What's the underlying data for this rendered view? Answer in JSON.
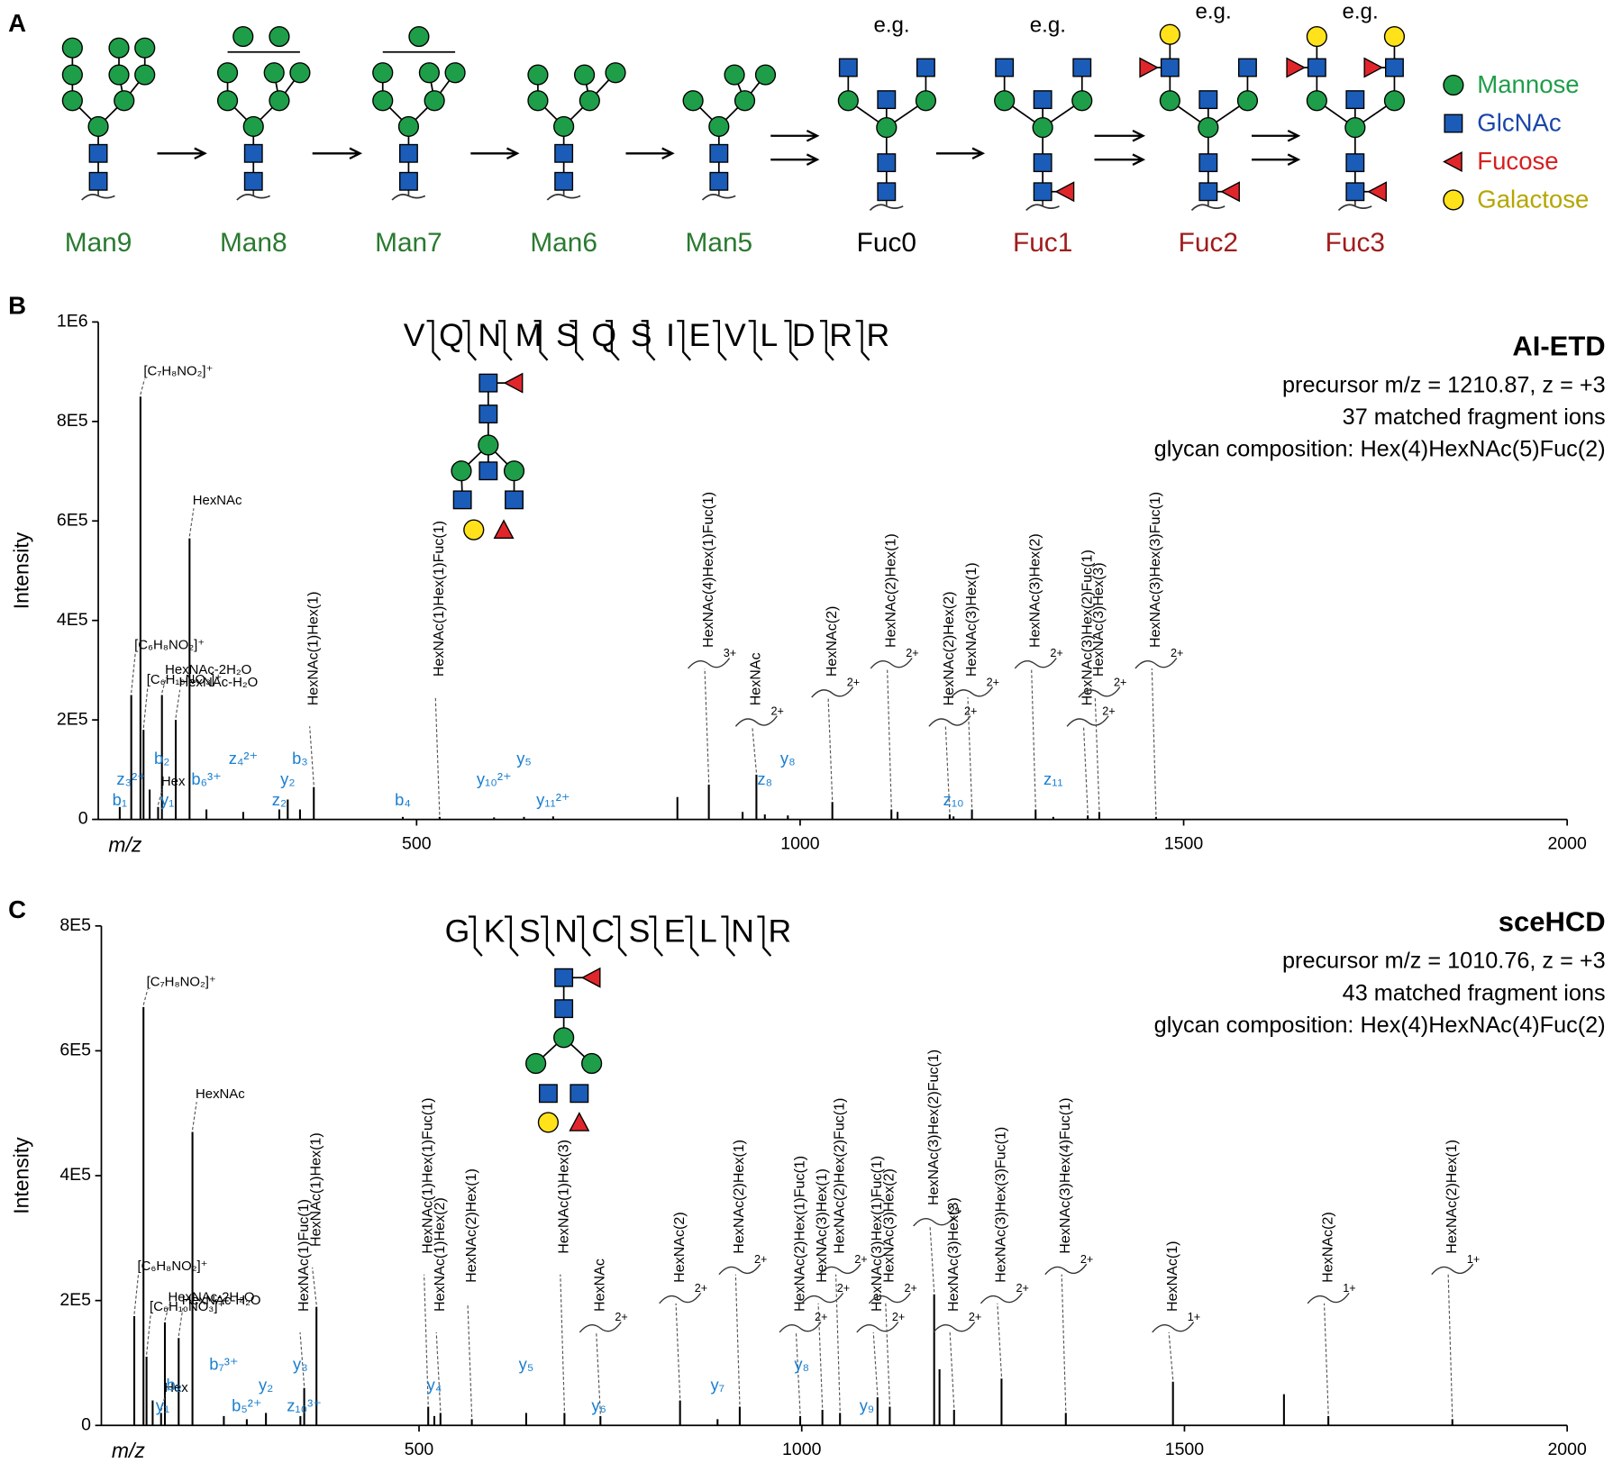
{
  "diagram": {
    "label": "A",
    "steps": [
      {
        "name": "Man9",
        "color": "#2a7a30"
      },
      {
        "name": "Man8",
        "color": "#2a7a30"
      },
      {
        "name": "Man7",
        "color": "#2a7a30"
      },
      {
        "name": "Man6",
        "color": "#2a7a30"
      },
      {
        "name": "Man5",
        "color": "#2a7a30"
      },
      {
        "name": "Fuc0",
        "color": "#000000",
        "note": "e.g."
      },
      {
        "name": "Fuc1",
        "color": "#a01c1c",
        "note": "e.g."
      },
      {
        "name": "Fuc2",
        "color": "#a01c1c",
        "note": "e.g."
      },
      {
        "name": "Fuc3",
        "color": "#a01c1c",
        "note": "e.g."
      }
    ],
    "legend": [
      "Mannose",
      "GlcNAc",
      "Fucose",
      "Galactose"
    ]
  },
  "chart_data": [
    {
      "type": "spectrum",
      "panel": "B",
      "title": "AI-ETD",
      "precursor": "precursor m/z = 1210.87, z = +3",
      "matched": "37 matched fragment ions",
      "composition": "glycan composition: Hex(4)HexNAc(5)Fuc(2)",
      "sequence": "VQNMSQSIEVLDRR",
      "xlabel": "m/z",
      "ylabel": "Intensity",
      "color": "#000000",
      "xlim": [
        85,
        2000
      ],
      "xticks": [
        500,
        1000,
        1500,
        2000
      ],
      "ylim": [
        0,
        1000000
      ],
      "yticks": [
        0,
        {
          "value": 200000,
          "label": "2E5"
        },
        {
          "value": 400000,
          "label": "4E5"
        },
        {
          "value": 600000,
          "label": "6E5"
        },
        {
          "value": 800000,
          "label": "8E5"
        },
        {
          "value": 1000000,
          "label": "1E6"
        }
      ],
      "x": [
        113,
        128,
        140,
        144,
        152,
        163,
        168,
        186,
        204,
        226,
        274,
        321,
        332,
        348,
        366,
        482,
        530,
        601,
        640,
        678,
        840,
        881,
        925,
        943,
        954,
        984,
        1042,
        1119,
        1127,
        1195,
        1200,
        1224,
        1307,
        1330,
        1375,
        1390,
        1464
      ],
      "values": [
        25000,
        250000,
        850000,
        180000,
        60000,
        25000,
        250000,
        200000,
        565000,
        20000,
        15000,
        20000,
        40000,
        20000,
        65000,
        5000,
        5000,
        4000,
        5000,
        6000,
        45000,
        70000,
        15000,
        90000,
        10000,
        8000,
        35000,
        20000,
        15000,
        10000,
        6000,
        20000,
        20000,
        5000,
        8000,
        15000,
        5000
      ],
      "peak_labels": [
        {
          "text": "[C₇H₈NO₂]⁺",
          "x": 140
        },
        {
          "text": "HexNAc",
          "x": 204
        },
        {
          "text": "[C₆H₈NO₂]⁺",
          "x": 128
        },
        {
          "text": "HexNAc-2H₂O",
          "x": 168
        },
        {
          "text": "HexNAc-H₂O",
          "x": 186
        },
        {
          "text": "[C₆H₁₀NO₃]⁺",
          "x": 144
        },
        {
          "text": "Hex",
          "x": 163
        }
      ],
      "glycan_labels": [
        {
          "text": "HexNAc(1)Hex(1)",
          "x": 366
        },
        {
          "text": "HexNAc(1)Hex(1)Fuc(1)",
          "x": 530
        },
        {
          "text": "HexNAc(4)Hex(1)Fuc(1)",
          "x": 881,
          "charge": "3+"
        },
        {
          "text": "HexNAc",
          "x": 943,
          "charge": "2+"
        },
        {
          "text": "HexNAc(2)",
          "x": 1042,
          "charge": "2+"
        },
        {
          "text": "HexNAc(2)Hex(1)",
          "x": 1119,
          "charge": "2+"
        },
        {
          "text": "HexNAc(2)Hex(2)",
          "x": 1195,
          "charge": "2+"
        },
        {
          "text": "HexNAc(3)Hex(1)",
          "x": 1224,
          "charge": "2+"
        },
        {
          "text": "HexNAc(3)Hex(2)",
          "x": 1307,
          "charge": "2+"
        },
        {
          "text": "HexNAc(3)Hex(2)Fuc(1)",
          "x": 1375,
          "charge": "2+"
        },
        {
          "text": "HexNAc(3)Hex(3)",
          "x": 1390,
          "charge": "2+"
        },
        {
          "text": "HexNAc(3)Hex(3)Fuc(1)",
          "x": 1464,
          "charge": "2+"
        }
      ],
      "ion_labels": [
        {
          "text": "b₁",
          "x": 113
        },
        {
          "text": "z₃²⁺",
          "x": 128
        },
        {
          "text": "b₂",
          "x": 168
        },
        {
          "text": "y₁",
          "x": 175
        },
        {
          "text": "b₆³⁺",
          "x": 226
        },
        {
          "text": "z₄²⁺",
          "x": 274
        },
        {
          "text": "z₂",
          "x": 321
        },
        {
          "text": "y₂",
          "x": 332
        },
        {
          "text": "b₃",
          "x": 348
        },
        {
          "text": "b₄",
          "x": 482
        },
        {
          "text": "y₁₀²⁺",
          "x": 601
        },
        {
          "text": "y₅",
          "x": 640
        },
        {
          "text": "y₁₁²⁺",
          "x": 678
        },
        {
          "text": "z₈",
          "x": 954
        },
        {
          "text": "y₈",
          "x": 984
        },
        {
          "text": "z₁₀",
          "x": 1200
        },
        {
          "text": "z₁₁",
          "x": 1330
        }
      ]
    },
    {
      "type": "spectrum",
      "panel": "C",
      "title": "sceHCD",
      "precursor": "precursor m/z = 1010.76, z = +3",
      "matched": "43 matched fragment ions",
      "composition": "glycan composition: Hex(4)HexNAc(4)Fuc(2)",
      "sequence": "GKSNCSELNR",
      "xlabel": "m/z",
      "ylabel": "Intensity",
      "color": "#000000",
      "xlim": [
        85,
        2000
      ],
      "xticks": [
        500,
        1000,
        1500,
        2000
      ],
      "ylim": [
        0,
        800000
      ],
      "yticks": [
        0,
        {
          "value": 200000,
          "label": "2E5"
        },
        {
          "value": 400000,
          "label": "4E5"
        },
        {
          "value": 600000,
          "label": "6E5"
        },
        {
          "value": 800000,
          "label": "8E5"
        }
      ],
      "x": [
        128,
        140,
        144,
        152,
        163,
        168,
        186,
        204,
        245,
        275,
        300,
        345,
        350,
        366,
        512,
        520,
        528,
        569,
        640,
        690,
        737,
        841,
        890,
        919,
        998,
        1027,
        1050,
        1099,
        1115,
        1173,
        1180,
        1199,
        1261,
        1345,
        1485,
        1630,
        1688,
        1850
      ],
      "values": [
        175000,
        670000,
        110000,
        40000,
        20000,
        165000,
        140000,
        470000,
        15000,
        10000,
        20000,
        15000,
        60000,
        190000,
        30000,
        15000,
        20000,
        10000,
        20000,
        20000,
        15000,
        40000,
        10000,
        30000,
        15000,
        25000,
        20000,
        45000,
        30000,
        210000,
        90000,
        25000,
        75000,
        20000,
        70000,
        50000,
        15000,
        10000
      ],
      "peak_labels": [
        {
          "text": "[C₇H₈NO₂]⁺",
          "x": 140
        },
        {
          "text": "HexNAc",
          "x": 204
        },
        {
          "text": "[C₆H₈NO₂]⁺",
          "x": 128
        },
        {
          "text": "HexNAc-2H₂O",
          "x": 168
        },
        {
          "text": "HexNAc-H₂O",
          "x": 186
        },
        {
          "text": "[C₆H₁₀NO₃]⁺",
          "x": 144
        },
        {
          "text": "Hex",
          "x": 163
        }
      ],
      "glycan_labels": [
        {
          "text": "HexNAc(1)Fuc(1)",
          "x": 350
        },
        {
          "text": "HexNAc(1)Hex(1)",
          "x": 366
        },
        {
          "text": "HexNAc(1)Hex(1)Fuc(1)",
          "x": 512
        },
        {
          "text": "HexNAc(1)Hex(2)",
          "x": 528
        },
        {
          "text": "HexNAc(2)Hex(1)",
          "x": 569
        },
        {
          "text": "HexNAc(1)Hex(3)",
          "x": 690
        },
        {
          "text": "HexNAc",
          "x": 737,
          "charge": "2+"
        },
        {
          "text": "HexNAc(2)",
          "x": 841,
          "charge": "2+"
        },
        {
          "text": "HexNAc(2)Hex(1)",
          "x": 919,
          "charge": "2+"
        },
        {
          "text": "HexNAc(2)Hex(1)Fuc(1)",
          "x": 998,
          "charge": "2+"
        },
        {
          "text": "HexNAc(3)Hex(1)",
          "x": 1027,
          "charge": "2+"
        },
        {
          "text": "HexNAc(2)Hex(2)Fuc(1)",
          "x": 1050,
          "charge": "2+"
        },
        {
          "text": "HexNAc(3)Hex(1)Fuc(1)",
          "x": 1099,
          "charge": "2+"
        },
        {
          "text": "HexNAc(3)Hex(2)",
          "x": 1115,
          "charge": "2+"
        },
        {
          "text": "HexNAc(3)Hex(2)Fuc(1)",
          "x": 1173,
          "charge": "2+"
        },
        {
          "text": "HexNAc(3)Hex(3)",
          "x": 1199,
          "charge": "2+"
        },
        {
          "text": "HexNAc(3)Hex(3)Fuc(1)",
          "x": 1261,
          "charge": "2+"
        },
        {
          "text": "HexNAc(3)Hex(4)Fuc(1)",
          "x": 1345,
          "charge": "2+"
        },
        {
          "text": "HexNAc(1)",
          "x": 1485,
          "charge": "1+"
        },
        {
          "text": "HexNAc(2)",
          "x": 1688,
          "charge": "1+"
        },
        {
          "text": "HexNAc(2)Hex(1)",
          "x": 1850,
          "charge": "1+"
        }
      ],
      "ion_labels": [
        {
          "text": "y₁",
          "x": 165
        },
        {
          "text": "b₂",
          "x": 180
        },
        {
          "text": "b₇³⁺",
          "x": 245
        },
        {
          "text": "b₅²⁺",
          "x": 275
        },
        {
          "text": "y₂",
          "x": 300
        },
        {
          "text": "y₃",
          "x": 345
        },
        {
          "text": "z₁₀³⁺",
          "x": 350
        },
        {
          "text": "y₄",
          "x": 520
        },
        {
          "text": "y₅",
          "x": 640
        },
        {
          "text": "y₆",
          "x": 735
        },
        {
          "text": "y₇",
          "x": 890
        },
        {
          "text": "y₈",
          "x": 1000
        },
        {
          "text": "y₉",
          "x": 1085
        }
      ]
    }
  ]
}
